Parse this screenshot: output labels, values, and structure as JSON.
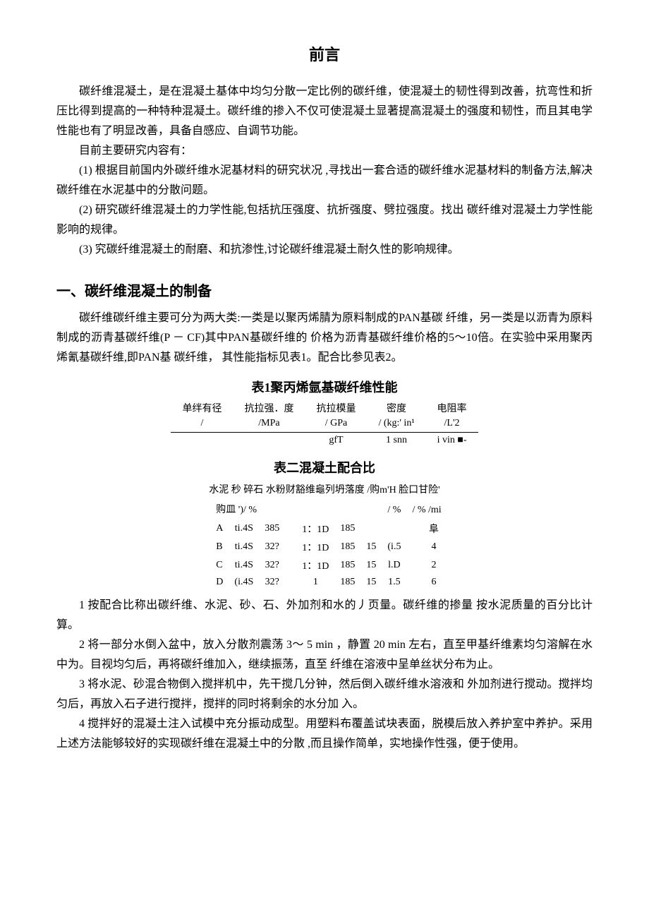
{
  "title": "前言",
  "intro": {
    "p1": "碳纤维混凝土，是在混凝土基体中均匀分散一定比例的碳纤维，使混凝土的韧性得到改善，抗弯性和折压比得到提高的一种特种混凝土。碳纤维的掺入不仅可使混凝土显著提高混凝土的强度和韧性，而且其电学性能也有了明显改善，具备自感应、自调节功能。",
    "p2": "目前主要研究内容有：",
    "p3": "(1)  根据目前国内外碳纤维水泥基材料的研究状况 ,寻找出一套合适的碳纤维水泥基材料的制备方法,解决碳纤维在水泥基中的分散问题。",
    "p4": "(2)  研究碳纤维混凝土的力学性能,包括抗压强度、抗折强度、劈拉强度。找出 碳纤维对混凝土力学性能影响的规律。",
    "p5": "(3)  究碳纤维混凝土的耐磨、和抗渗性,讨论碳纤维混凝土耐久性的影响规律。"
  },
  "section1": {
    "heading": "一、碳纤维混凝土的制备",
    "p1": "碳纤维碳纤维主要可分为两大类:一类是以聚丙烯腈为原料制成的PAN基碳 纤维，另一类是以沥青为原料制成的沥青基碳纤维(P － CF)其中PAN基碳纤维的 价格为沥青基碳纤维价格的5〜10倍。在实验中采用聚丙烯氰基碳纤维,即PAN基 碳纤维， 其性能指标见表1。配合比参见表2。"
  },
  "table1": {
    "caption": "表1聚丙烯氩基碳纤维性能",
    "headers": [
      {
        "l1": "单绊有径",
        "l2": "/"
      },
      {
        "l1": "抗拉强．度",
        "l2": "/MPa"
      },
      {
        "l1": "抗拉模量",
        "l2": "/ GPa"
      },
      {
        "l1": "密度",
        "l2": "/ (kg:'  in¹"
      },
      {
        "l1": "电阻率",
        "l2": "/L'2"
      }
    ],
    "row": [
      "",
      "",
      "gfT",
      "1 snn",
      "i vin ■-"
    ]
  },
  "table2": {
    "caption": "表二混凝土配合比",
    "header_line1": "水泥 秒 碎石  水粉财豁维龜列坍落度 /购m'H 脸口甘险'",
    "header_line2_left": "购皿 ')/ %",
    "header_line2_mid": "/ %",
    "header_line2_right": "/ % /mi",
    "rows": [
      [
        "A",
        "ti.4S",
        "385",
        "",
        "1：1D",
        "185",
        "",
        "",
        "",
        "阜"
      ],
      [
        "B",
        "ti.4S",
        "32?",
        "",
        "1：1D",
        "185",
        "15",
        "(i.5",
        "",
        "4"
      ],
      [
        "C",
        "ti.4S",
        "32?",
        "",
        "1：1D",
        "185",
        "15",
        "l.D",
        "",
        "2"
      ],
      [
        "D",
        "(i.4S",
        "32?",
        "",
        "1",
        "185",
        "15",
        "1.5",
        "",
        "6"
      ]
    ]
  },
  "steps": {
    "s1": "1  按配合比称出碳纤维、水泥、砂、石、外加剂和水的丿页量。碳纤维的掺量 按水泥质量的百分比计算。",
    "s2": "2  将一部分水倒入盆中，放入分散剂震荡 3〜 5 min ，静置 20 min 左右，直至甲基纤维素均匀溶解在水中为。目视均匀后，再将碳纤维加入，继续振荡，直至 纤维在溶液中呈单丝状分布为止。",
    "s3": "3 将水泥、砂混合物倒入搅拌机中，先干搅几分钟，然后倒入碳纤维水溶液和 外加剂进行搅动。搅拌均匀后，再放入石子进行搅拌，搅拌的同时将剩余的水分加 入。",
    "s4": "4  搅拌好的混凝土注入试模中充分振动成型。用塑料布覆盖试块表面，脱模后放入养护室中养护。采用上述方法能够较好的实现碳纤维在混凝土中的分散 ,而且操作简单，实地操作性强，便于使用。"
  }
}
